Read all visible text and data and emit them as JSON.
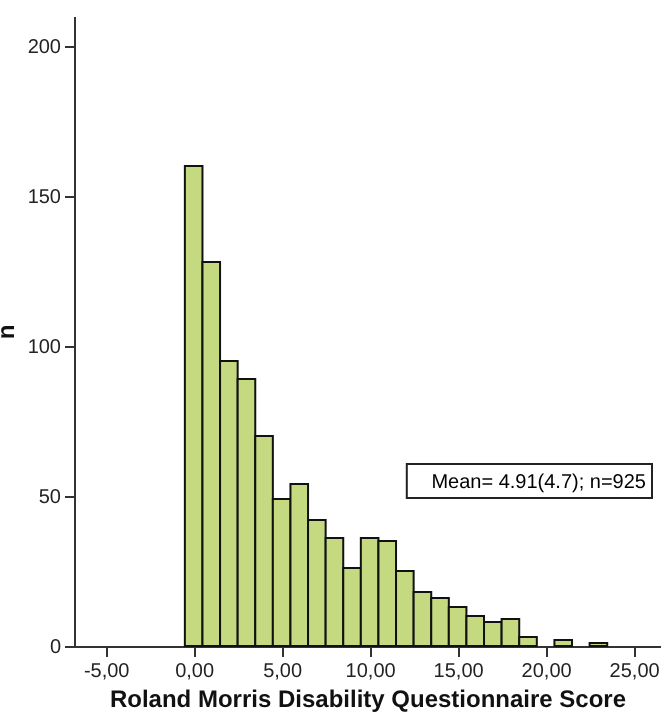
{
  "chart_data": {
    "type": "histogram",
    "xlabel": "Roland Morris Disability Questionnaire Score",
    "ylabel": "n",
    "bins": [
      -0.5,
      0.5,
      1.5,
      2.5,
      3.5,
      4.5,
      5.5,
      6.5,
      7.5,
      8.5,
      9.5,
      10.5,
      11.5,
      12.5,
      13.5,
      14.5,
      15.5,
      16.5,
      17.5,
      18.5,
      19.5,
      20.5,
      21.5,
      22.5,
      23.5
    ],
    "values": [
      160,
      128,
      95,
      89,
      70,
      49,
      54,
      42,
      36,
      26,
      36,
      35,
      25,
      18,
      16,
      13,
      10,
      8,
      9,
      3,
      0,
      2,
      0,
      1
    ],
    "color": "#c5d980",
    "xlim": [
      -6.8,
      26.5
    ],
    "xticks": [
      {
        "value": -5,
        "label": "-5,00"
      },
      {
        "value": 0,
        "label": "0,00"
      },
      {
        "value": 5,
        "label": "5,00"
      },
      {
        "value": 10,
        "label": "10,00"
      },
      {
        "value": 15,
        "label": "15,00"
      },
      {
        "value": 20,
        "label": "20,00"
      },
      {
        "value": 25,
        "label": "25,00"
      }
    ],
    "ylim": [
      0,
      210
    ],
    "yticks": [
      0,
      50,
      100,
      150,
      200
    ],
    "annotations": [
      "Mean= 4.91(4.7); n=925"
    ]
  }
}
